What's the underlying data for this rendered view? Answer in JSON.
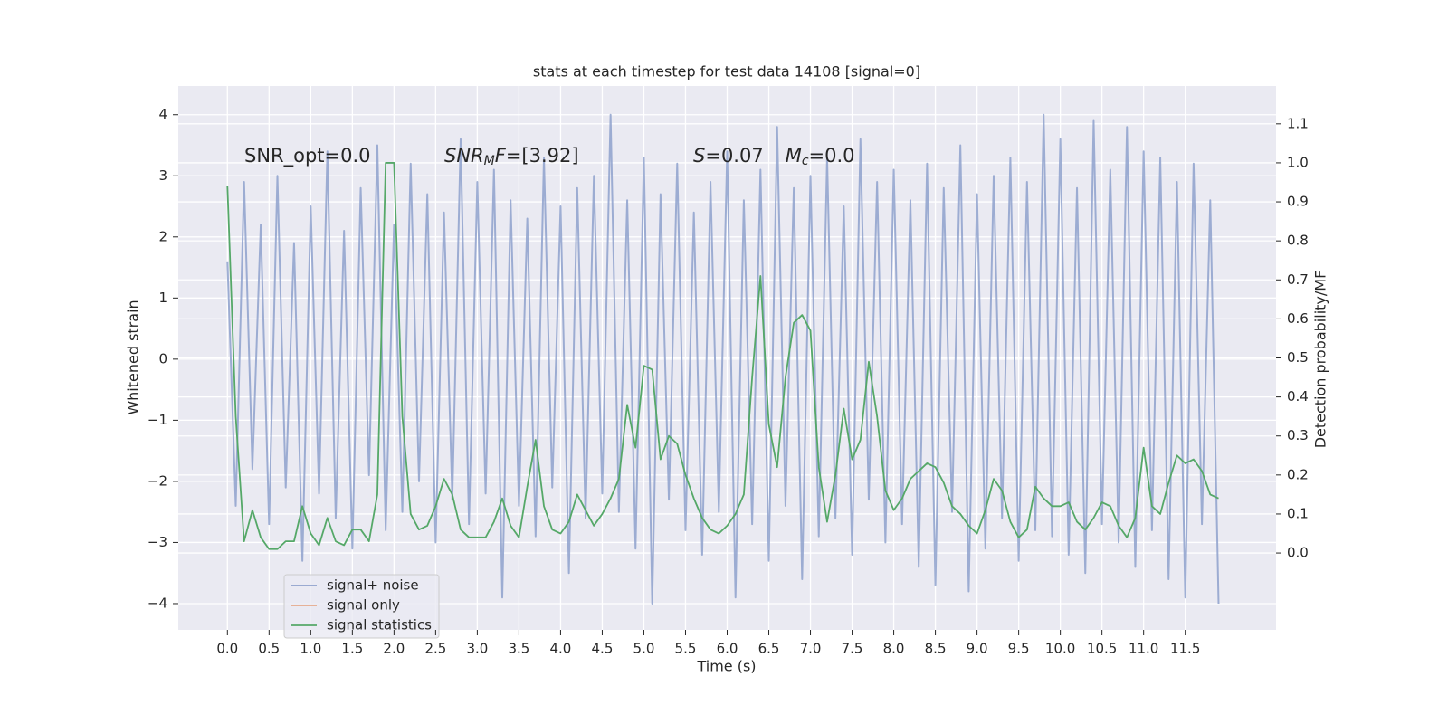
{
  "chart_data": {
    "type": "line",
    "title": "stats at each timestep for test data 14108 [signal=0]",
    "xlabel": "Time (s)",
    "ylabel": "Whitened strain",
    "y2label": "Detection probability/MF",
    "annotations": [
      [
        "SNR_opt=0.0"
      ],
      [
        "SNR",
        "M",
        "F",
        "=[3.92]"
      ],
      [
        "S",
        "=0.07",
        "M",
        "c",
        "=0.0"
      ]
    ],
    "x": [
      0.0,
      0.1,
      0.2,
      0.3,
      0.4,
      0.5,
      0.6,
      0.7,
      0.8,
      0.9,
      1.0,
      1.1,
      1.2,
      1.3,
      1.4,
      1.5,
      1.6,
      1.7,
      1.8,
      1.9,
      2.0,
      2.1,
      2.2,
      2.3,
      2.4,
      2.5,
      2.6,
      2.7,
      2.8,
      2.9,
      3.0,
      3.1,
      3.2,
      3.3,
      3.4,
      3.5,
      3.6,
      3.7,
      3.8,
      3.9,
      4.0,
      4.1,
      4.2,
      4.3,
      4.4,
      4.5,
      4.6,
      4.7,
      4.8,
      4.9,
      5.0,
      5.1,
      5.2,
      5.3,
      5.4,
      5.5,
      5.6,
      5.7,
      5.8,
      5.9,
      6.0,
      6.1,
      6.2,
      6.3,
      6.4,
      6.5,
      6.6,
      6.7,
      6.8,
      6.9,
      7.0,
      7.1,
      7.2,
      7.3,
      7.4,
      7.5,
      7.6,
      7.7,
      7.8,
      7.9,
      8.0,
      8.1,
      8.2,
      8.3,
      8.4,
      8.5,
      8.6,
      8.7,
      8.8,
      8.9,
      9.0,
      9.1,
      9.2,
      9.3,
      9.4,
      9.5,
      9.6,
      9.7,
      9.8,
      9.9,
      10.0,
      10.1,
      10.2,
      10.3,
      10.4,
      10.5,
      10.6,
      10.7,
      10.8,
      10.9,
      11.0,
      11.1,
      11.2,
      11.3,
      11.4,
      11.5,
      11.6,
      11.7,
      11.8,
      11.9
    ],
    "series": [
      {
        "name": "signal+ noise",
        "color": "#8ea1cc",
        "values": [
          1.6,
          -2.4,
          2.9,
          -1.8,
          2.2,
          -2.7,
          3.0,
          -2.1,
          1.9,
          -3.3,
          2.5,
          -2.2,
          3.4,
          -2.6,
          2.1,
          -3.1,
          2.8,
          -1.9,
          3.5,
          -2.8,
          2.2,
          -2.5,
          3.2,
          -2.0,
          2.7,
          -3.0,
          2.4,
          -2.3,
          3.6,
          -2.7,
          2.9,
          -2.2,
          3.1,
          -3.9,
          2.6,
          -2.4,
          2.3,
          -2.9,
          3.3,
          -2.1,
          2.5,
          -3.5,
          2.8,
          -2.6,
          3.0,
          -2.2,
          4.0,
          -2.5,
          2.6,
          -3.1,
          3.3,
          -4.0,
          2.7,
          -2.3,
          3.2,
          -2.8,
          2.4,
          -3.2,
          2.9,
          -2.5,
          3.4,
          -3.9,
          2.6,
          -2.7,
          3.1,
          -3.3,
          3.8,
          -2.4,
          2.8,
          -3.6,
          3.0,
          -2.9,
          3.3,
          -2.6,
          2.5,
          -3.2,
          3.6,
          -2.3,
          2.9,
          -3.0,
          3.1,
          -2.7,
          2.6,
          -3.4,
          3.2,
          -3.7,
          2.8,
          -2.5,
          3.5,
          -3.8,
          2.7,
          -3.1,
          3.0,
          -2.6,
          3.3,
          -3.3,
          2.9,
          -2.8,
          4.0,
          -2.9,
          3.6,
          -3.2,
          2.8,
          -3.5,
          3.9,
          -2.7,
          3.1,
          -3.0,
          3.8,
          -3.4,
          3.4,
          -2.8,
          3.3,
          -3.6,
          2.9,
          -3.9,
          3.2,
          -2.7,
          2.6,
          -4.0
        ]
      },
      {
        "name": "signal only",
        "color": "#e6a98a",
        "values": [
          null,
          null,
          null,
          null,
          null,
          null,
          null,
          null,
          null,
          null,
          null,
          null,
          null,
          null,
          null,
          null,
          null,
          null,
          null,
          null,
          null,
          null,
          null,
          null,
          null,
          null,
          null,
          null,
          null,
          null,
          null,
          null,
          null,
          null,
          null,
          null,
          null,
          null,
          null,
          null,
          null,
          null,
          null,
          null,
          null,
          null,
          null,
          null,
          null,
          null,
          null,
          null,
          null,
          null,
          null,
          null,
          null,
          null,
          null,
          null,
          null,
          null,
          null,
          null,
          null,
          null,
          null,
          null,
          null,
          null,
          null,
          null,
          null,
          null,
          null,
          null,
          null,
          null,
          null,
          null,
          null,
          null,
          null,
          null,
          null,
          null,
          null,
          null,
          null,
          null,
          null,
          null,
          null,
          null,
          null,
          null,
          null,
          null,
          null,
          null,
          null,
          null,
          null,
          null,
          null,
          null,
          null,
          null,
          null,
          null,
          null,
          null,
          null,
          null,
          null,
          null,
          null,
          null,
          null,
          null
        ]
      },
      {
        "name": "signal statistics",
        "color": "#55a868",
        "axis": "y2",
        "values": [
          0.94,
          0.35,
          0.03,
          0.11,
          0.04,
          0.01,
          0.01,
          0.03,
          0.03,
          0.12,
          0.05,
          0.02,
          0.09,
          0.03,
          0.02,
          0.06,
          0.06,
          0.03,
          0.15,
          1.0,
          1.0,
          0.35,
          0.1,
          0.06,
          0.07,
          0.12,
          0.19,
          0.15,
          0.06,
          0.04,
          0.04,
          0.04,
          0.08,
          0.14,
          0.07,
          0.04,
          0.17,
          0.29,
          0.12,
          0.06,
          0.05,
          0.08,
          0.15,
          0.11,
          0.07,
          0.1,
          0.14,
          0.19,
          0.38,
          0.27,
          0.48,
          0.47,
          0.24,
          0.3,
          0.28,
          0.2,
          0.14,
          0.09,
          0.06,
          0.05,
          0.07,
          0.1,
          0.15,
          0.45,
          0.71,
          0.33,
          0.22,
          0.45,
          0.59,
          0.61,
          0.57,
          0.22,
          0.08,
          0.2,
          0.37,
          0.24,
          0.29,
          0.49,
          0.35,
          0.16,
          0.11,
          0.14,
          0.19,
          0.21,
          0.23,
          0.22,
          0.18,
          0.12,
          0.1,
          0.07,
          0.05,
          0.11,
          0.19,
          0.16,
          0.08,
          0.04,
          0.06,
          0.17,
          0.14,
          0.12,
          0.12,
          0.13,
          0.08,
          0.06,
          0.09,
          0.13,
          0.12,
          0.07,
          0.04,
          0.09,
          0.27,
          0.12,
          0.1,
          0.18,
          0.25,
          0.23,
          0.24,
          0.21,
          0.15,
          0.14
        ]
      }
    ],
    "xlim": [
      -0.59,
      12.59
    ],
    "xticks": [
      {
        "value": 0,
        "label": "0.0"
      },
      0.5,
      {
        "value": 1,
        "label": "1.0"
      },
      1.5,
      {
        "value": 2,
        "label": "2.0"
      },
      2.5,
      {
        "value": 3,
        "label": "3.0"
      },
      3.5,
      {
        "value": 4,
        "label": "4.0"
      },
      4.5,
      {
        "value": 5,
        "label": "5.0"
      },
      5.5,
      {
        "value": 6,
        "label": "6.0"
      },
      6.5,
      {
        "value": 7,
        "label": "7.0"
      },
      7.5,
      {
        "value": 8,
        "label": "8.0"
      },
      8.5,
      {
        "value": 9,
        "label": "9.0"
      },
      9.5,
      {
        "value": 10,
        "label": "10.0"
      },
      10.5,
      {
        "value": 11,
        "label": "11.0"
      },
      11.5
    ],
    "ylim": [
      -4.43,
      4.47
    ],
    "yticks": [
      {
        "value": -4,
        "label": "−4"
      },
      {
        "value": -3,
        "label": "−3"
      },
      {
        "value": -2,
        "label": "−2"
      },
      {
        "value": -1,
        "label": "−1"
      },
      0,
      1,
      2,
      3,
      4
    ],
    "y2lim": [
      -0.197,
      1.197
    ],
    "y2ticks": [
      {
        "value": 0,
        "label": "0.0"
      },
      0.1,
      0.2,
      0.3,
      0.4,
      0.5,
      0.6,
      0.7,
      0.8,
      0.9,
      {
        "value": 1,
        "label": "1.0"
      },
      1.1
    ],
    "grid": true,
    "legend": "lower left"
  }
}
